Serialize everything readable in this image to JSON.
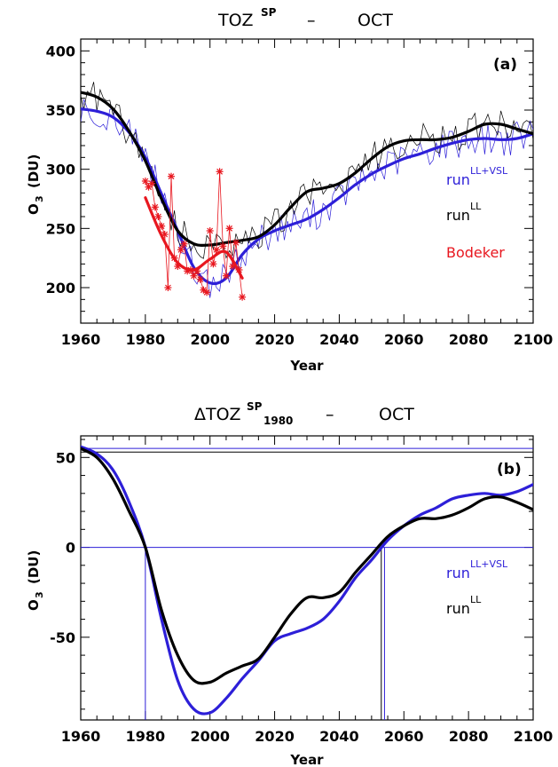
{
  "chart_data": [
    {
      "type": "line",
      "title": {
        "main": "TOZ",
        "sup": "SP",
        "dash": "–",
        "month": "OCT"
      },
      "panel_label": "(a)",
      "xlabel": "Year",
      "ylabel": {
        "main": "O",
        "sub": "3",
        "unit": "(DU)"
      },
      "xlim": [
        1960,
        2100
      ],
      "ylim": [
        170,
        410
      ],
      "xticks": [
        1960,
        1980,
        2000,
        2020,
        2040,
        2060,
        2080,
        2100
      ],
      "yticks": [
        200,
        250,
        300,
        350,
        400
      ],
      "legend": [
        {
          "main": "run",
          "sup": "LL+VSL",
          "color": "#2d1fd8"
        },
        {
          "main": "run",
          "sup": "LL",
          "color": "#000000"
        },
        {
          "main": "Bodeker",
          "sup": "",
          "color": "#e8171f"
        }
      ],
      "series": [
        {
          "name": "run LL+VSL",
          "color": "#2d1fd8",
          "style": "smooth",
          "x": [
            1960,
            1965,
            1970,
            1975,
            1980,
            1985,
            1990,
            1995,
            2000,
            2005,
            2010,
            2015,
            2020,
            2025,
            2030,
            2035,
            2040,
            2045,
            2050,
            2055,
            2060,
            2065,
            2070,
            2075,
            2080,
            2085,
            2090,
            2095,
            2100
          ],
          "y": [
            351,
            349,
            344,
            331,
            310,
            279,
            248,
            217,
            204,
            208,
            228,
            241,
            248,
            253,
            258,
            266,
            276,
            287,
            296,
            303,
            309,
            313,
            318,
            322,
            325,
            326,
            325,
            326,
            330
          ]
        },
        {
          "name": "run LL",
          "color": "#000000",
          "style": "smooth",
          "x": [
            1960,
            1965,
            1970,
            1975,
            1980,
            1985,
            1990,
            1995,
            2000,
            2005,
            2010,
            2015,
            2020,
            2025,
            2030,
            2035,
            2040,
            2045,
            2050,
            2055,
            2060,
            2065,
            2070,
            2075,
            2080,
            2085,
            2090,
            2095,
            2100
          ],
          "y": [
            365,
            361,
            351,
            332,
            307,
            275,
            248,
            237,
            236,
            238,
            240,
            243,
            253,
            268,
            281,
            284,
            288,
            297,
            309,
            319,
            324,
            325,
            325,
            327,
            332,
            338,
            338,
            334,
            330
          ]
        },
        {
          "name": "Bodeker",
          "color": "#e8171f",
          "style": "smooth",
          "x": [
            1980,
            1985,
            1990,
            1995,
            2000,
            2005,
            2010
          ],
          "y": [
            276,
            244,
            221,
            215,
            224,
            230,
            208
          ]
        },
        {
          "name": "Bodeker annual",
          "color": "#e8171f",
          "style": "markers",
          "x": [
            1980,
            1981,
            1982,
            1983,
            1984,
            1985,
            1986,
            1987,
            1988,
            1989,
            1990,
            1991,
            1992,
            1993,
            1994,
            1995,
            1996,
            1997,
            1998,
            1999,
            2000,
            2001,
            2002,
            2003,
            2004,
            2005,
            2006,
            2007,
            2008,
            2009,
            2010
          ],
          "y": [
            290,
            285,
            288,
            268,
            260,
            252,
            245,
            200,
            294,
            225,
            218,
            232,
            237,
            214,
            215,
            210,
            214,
            207,
            198,
            196,
            248,
            220,
            232,
            298,
            235,
            210,
            250,
            218,
            238,
            215,
            192
          ]
        }
      ]
    },
    {
      "type": "line",
      "title": {
        "main": "ΔTOZ",
        "sup": "SP",
        "sub": "1980",
        "dash": "–",
        "month": "OCT"
      },
      "panel_label": "(b)",
      "xlabel": "Year",
      "ylabel": {
        "main": "O",
        "sub": "3",
        "unit": "(DU)"
      },
      "xlim": [
        1960,
        2100
      ],
      "ylim": [
        -96,
        62
      ],
      "xticks": [
        1960,
        1980,
        2000,
        2020,
        2040,
        2060,
        2080,
        2100
      ],
      "yticks": [
        -50,
        0,
        50
      ],
      "legend": [
        {
          "main": "run",
          "sup": "LL+VSL",
          "color": "#2d1fd8"
        },
        {
          "main": "run",
          "sup": "LL",
          "color": "#000000"
        }
      ],
      "reference_lines": {
        "horizontal": [
          {
            "y": 0,
            "color": "#2d1fd8"
          },
          {
            "y": 55,
            "color": "#2d1fd8"
          },
          {
            "y": 53,
            "color": "#000000"
          }
        ],
        "vertical": [
          {
            "x": 1980,
            "color": "#2d1fd8"
          },
          {
            "x": 2053,
            "color": "#000000"
          },
          {
            "x": 2054,
            "color": "#2d1fd8"
          }
        ]
      },
      "series": [
        {
          "name": "run LL+VSL",
          "color": "#2d1fd8",
          "style": "smooth",
          "x": [
            1960,
            1965,
            1970,
            1975,
            1980,
            1985,
            1990,
            1995,
            2000,
            2005,
            2010,
            2015,
            2020,
            2025,
            2030,
            2035,
            2040,
            2045,
            2050,
            2055,
            2060,
            2065,
            2070,
            2075,
            2080,
            2085,
            2090,
            2095,
            2100
          ],
          "y": [
            56,
            52,
            43,
            25,
            0,
            -40,
            -74,
            -90,
            -92,
            -84,
            -73,
            -63,
            -52,
            -48,
            -45,
            -40,
            -30,
            -17,
            -7,
            4,
            12,
            18,
            22,
            27,
            29,
            30,
            29,
            31,
            35
          ]
        },
        {
          "name": "run LL",
          "color": "#000000",
          "style": "smooth",
          "x": [
            1960,
            1965,
            1970,
            1975,
            1980,
            1985,
            1990,
            1995,
            2000,
            2005,
            2010,
            2015,
            2020,
            2025,
            2030,
            2035,
            2040,
            2045,
            2050,
            2055,
            2060,
            2065,
            2070,
            2075,
            2080,
            2085,
            2090,
            2095,
            2100
          ],
          "y": [
            55,
            50,
            38,
            20,
            0,
            -35,
            -60,
            -74,
            -75,
            -70,
            -66,
            -62,
            -50,
            -37,
            -28,
            -28,
            -25,
            -14,
            -4,
            6,
            12,
            16,
            16,
            18,
            22,
            27,
            28,
            25,
            21
          ]
        }
      ]
    }
  ]
}
